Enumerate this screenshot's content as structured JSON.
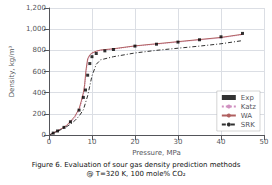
{
  "chart_data": {
    "type": "line",
    "title": "Figure 6. Evaluation of sour gas density prediction methods\n@ T=320 K, 100 mole% CO₂",
    "xlabel": "Pressure, MPa",
    "ylabel": "Density, kg/m³",
    "xlim": [
      0,
      50
    ],
    "ylim": [
      0,
      1200
    ],
    "xticks": [
      0,
      10,
      20,
      30,
      40,
      50
    ],
    "yticks": [
      0,
      200,
      400,
      600,
      800,
      1000,
      1200
    ],
    "grid": true,
    "legend": "lower right",
    "series": [
      {
        "name": "Exp",
        "type": "scatter",
        "marker": "square",
        "color": "#000000",
        "x": [
          1.0,
          2.0,
          3.5,
          5.0,
          7.0,
          8.0,
          8.5,
          9.0,
          9.5,
          10.0,
          11.0,
          13.0,
          15.0,
          20.0,
          25.0,
          30.0,
          35.0,
          40.0,
          45.0
        ],
        "values": [
          18,
          38,
          72,
          125,
          235,
          355,
          425,
          565,
          675,
          740,
          770,
          795,
          808,
          840,
          858,
          878,
          900,
          928,
          960
        ]
      },
      {
        "name": "Katz",
        "type": "line",
        "line_style": "dotted",
        "color": "#d090c0",
        "x": [
          0.2,
          0.5,
          1,
          2,
          3,
          4,
          5,
          6,
          7,
          7.5,
          8,
          8.3,
          8.6,
          9.0,
          9.5,
          10,
          11,
          12,
          15,
          20,
          25,
          30,
          35,
          40,
          45
        ],
        "values": [
          3,
          8,
          18,
          38,
          58,
          82,
          118,
          162,
          228,
          295,
          380,
          450,
          580,
          700,
          750,
          770,
          790,
          800,
          812,
          840,
          858,
          878,
          898,
          918,
          948
        ]
      },
      {
        "name": "WA",
        "type": "line",
        "line_style": "solid",
        "color": "#b06060",
        "x": [
          0.2,
          0.5,
          1,
          2,
          3,
          4,
          5,
          6,
          7,
          7.5,
          8,
          8.3,
          8.6,
          9.0,
          9.5,
          10,
          11,
          12,
          15,
          20,
          25,
          30,
          35,
          40,
          45
        ],
        "values": [
          3,
          8,
          18,
          40,
          62,
          88,
          128,
          175,
          248,
          318,
          400,
          475,
          610,
          720,
          758,
          775,
          792,
          803,
          815,
          842,
          862,
          882,
          902,
          922,
          952
        ]
      },
      {
        "name": "SRK",
        "type": "line",
        "line_style": "dashdot",
        "color": "#303030",
        "x": [
          0.2,
          0.5,
          1,
          2,
          3,
          4,
          5,
          6,
          7,
          8,
          9,
          10,
          11,
          12,
          15,
          20,
          25,
          30,
          35,
          40,
          45
        ],
        "values": [
          3,
          8,
          18,
          36,
          55,
          76,
          102,
          135,
          178,
          238,
          370,
          558,
          668,
          710,
          740,
          775,
          800,
          820,
          840,
          862,
          892
        ]
      }
    ]
  }
}
